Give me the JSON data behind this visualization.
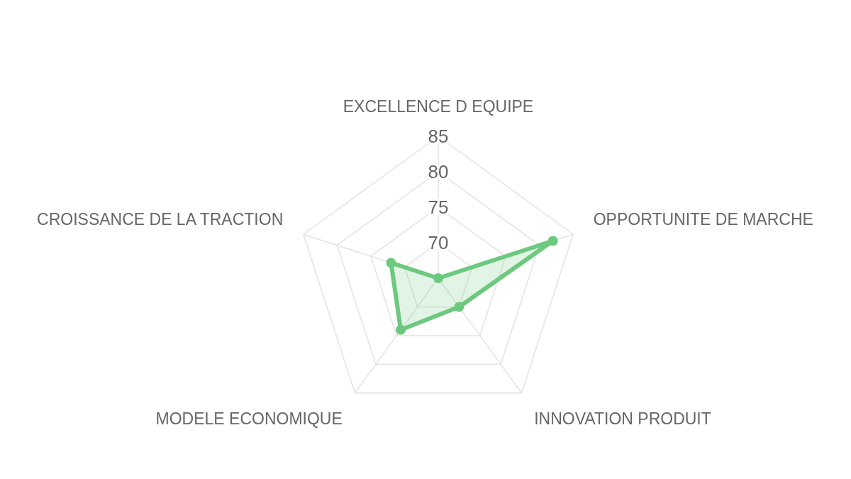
{
  "chart_data": {
    "type": "radar",
    "categories": [
      "EXCELLENCE D EQUIPE",
      "OPPORTUNITE DE MARCHE",
      "INNOVATION PRODUIT",
      "MODELE ECONOMIQUE",
      "CROISSANCE DE LA TRACTION"
    ],
    "series": [
      {
        "color": "#6cc97f",
        "values": [
          65,
          82,
          70,
          74,
          72
        ]
      }
    ],
    "ylim": [
      65,
      85
    ],
    "yticks": [
      70,
      75,
      80,
      85
    ],
    "grid": true,
    "marker": "circle"
  }
}
